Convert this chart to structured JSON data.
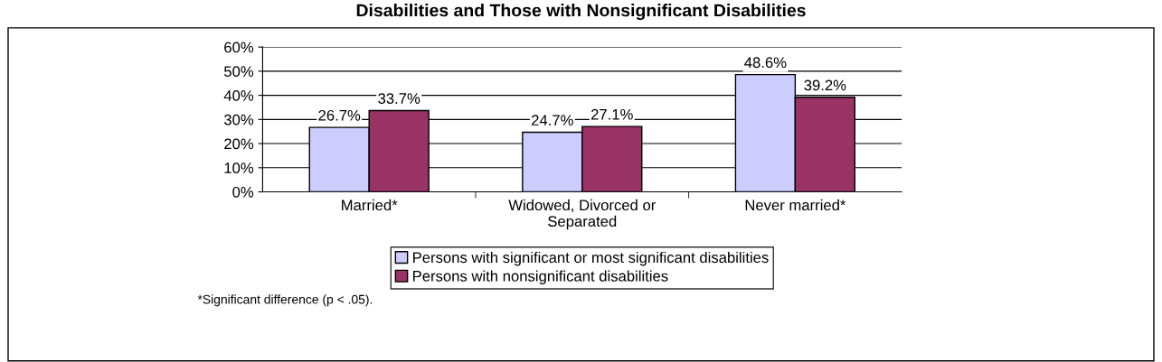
{
  "chart_data": {
    "type": "bar",
    "title": "Disabilities and Those with Nonsignificant Disabilities",
    "categories": [
      "Married*",
      "Widowed, Divorced or\nSeparated",
      "Never married*"
    ],
    "series": [
      {
        "name": "Persons with significant or most significant disabilities",
        "color": "#ccccff",
        "values": [
          26.7,
          24.7,
          48.6
        ],
        "value_labels": [
          "26.7%",
          "24.7%",
          "48.6%"
        ]
      },
      {
        "name": "Persons with nonsignificant disabilities",
        "color": "#993366",
        "values": [
          33.7,
          27.1,
          39.2
        ],
        "value_labels": [
          "33.7%",
          "27.1%",
          "39.2%"
        ]
      }
    ],
    "ylim": [
      0,
      60
    ],
    "yticks": [
      {
        "value": 0,
        "label": "0%"
      },
      {
        "value": 10,
        "label": "10%"
      },
      {
        "value": 20,
        "label": "20%"
      },
      {
        "value": 30,
        "label": "30%"
      },
      {
        "value": 40,
        "label": "40%"
      },
      {
        "value": 50,
        "label": "50%"
      },
      {
        "value": 60,
        "label": "60%"
      }
    ],
    "grid": "y",
    "legend": "bottom",
    "annotations": [
      "*Significant difference (p < .05)."
    ]
  }
}
